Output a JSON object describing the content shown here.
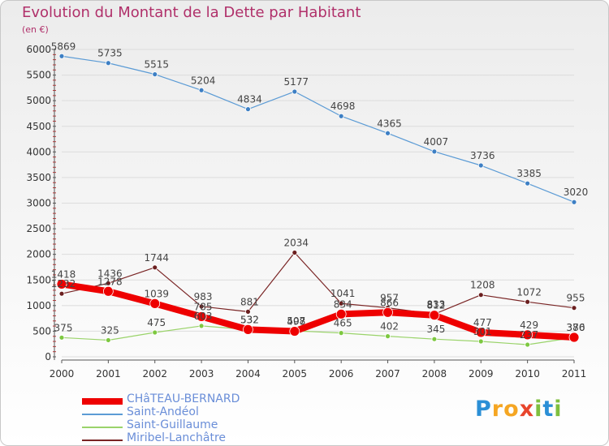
{
  "chart_data": {
    "type": "line",
    "title": "Evolution du Montant de la Dette par Habitant",
    "subtitle": "(en €)",
    "xlabel": "",
    "ylabel": "",
    "ylim": [
      0,
      6000
    ],
    "yticks": [
      0,
      500,
      1000,
      1500,
      2000,
      2500,
      3000,
      3500,
      4000,
      4500,
      5000,
      5500,
      6000
    ],
    "categories": [
      "2000",
      "2001",
      "2002",
      "2003",
      "2004",
      "2005",
      "2006",
      "2007",
      "2008",
      "2009",
      "2010",
      "2011"
    ],
    "legend_position": "bottom-left",
    "series": [
      {
        "name": "Saint-Andéol",
        "color": "#5b9bd5",
        "values": [
          5869,
          5735,
          5515,
          5204,
          4834,
          5177,
          4698,
          4365,
          4007,
          3736,
          3385,
          3020
        ]
      },
      {
        "name": "Saint-Guillaume",
        "color": "#9ad36a",
        "values": [
          375,
          325,
          475,
          603,
          532,
          507,
          465,
          402,
          345,
          301,
          237,
          376
        ]
      },
      {
        "name": "Miribel-Lanchâtre",
        "color": "#7a2525",
        "values": [
          1232,
          1436,
          1744,
          983,
          881,
          2034,
          1041,
          957,
          833,
          1208,
          1072,
          955
        ]
      },
      {
        "name": "CHâTEAU-BERNARD",
        "color": "#ee0000",
        "values": [
          1418,
          1278,
          1039,
          785,
          532,
          498,
          834,
          866,
          812,
          477,
          429,
          380
        ]
      }
    ]
  },
  "legend_order": [
    "CHâTEAU-BERNARD",
    "Saint-Andéol",
    "Saint-Guillaume",
    "Miribel-Lanchâtre"
  ],
  "brand": {
    "letters": [
      "P",
      "r",
      "o",
      "x",
      "i",
      "t",
      "i"
    ],
    "colors": [
      "#2b8fd6",
      "#f5a623",
      "#f5a623",
      "#e8452c",
      "#7fbf3f",
      "#2b8fd6",
      "#7fbf3f"
    ]
  }
}
